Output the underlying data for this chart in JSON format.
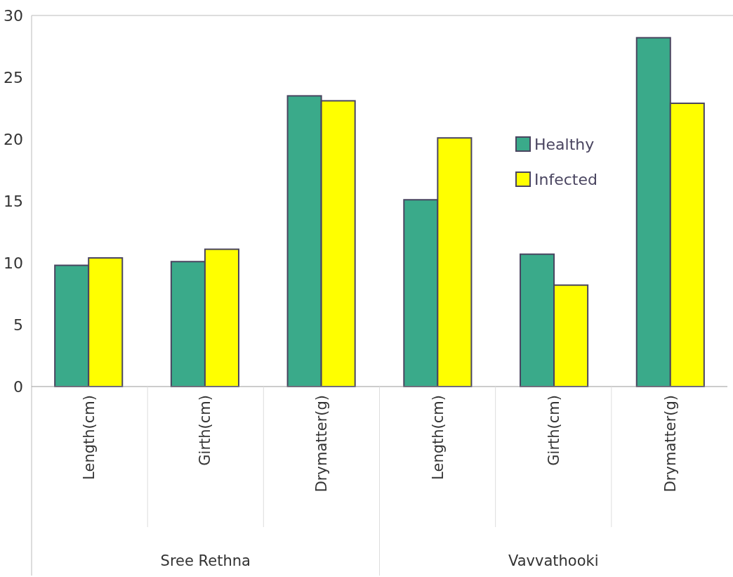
{
  "chart_data": {
    "type": "bar",
    "categories": [
      "Length(cm)",
      "Girth(cm)",
      "Drymatter(g)",
      "Length(cm)",
      "Girth(cm)",
      "Drymatter(g)"
    ],
    "series": [
      {
        "name": "Healthy",
        "color": "#3aaa8a",
        "values": [
          9.8,
          10.1,
          23.5,
          15.1,
          10.7,
          28.2
        ]
      },
      {
        "name": "Infected",
        "color": "#ffff00",
        "values": [
          10.4,
          11.1,
          23.1,
          20.1,
          8.2,
          22.9
        ]
      }
    ],
    "ylim": [
      0,
      30
    ],
    "yticks": [
      0,
      5,
      10,
      15,
      20,
      25,
      30
    ],
    "annotations": [
      "Sree Rethna",
      "Vavvathooki"
    ],
    "legend": "right",
    "grid": false
  }
}
